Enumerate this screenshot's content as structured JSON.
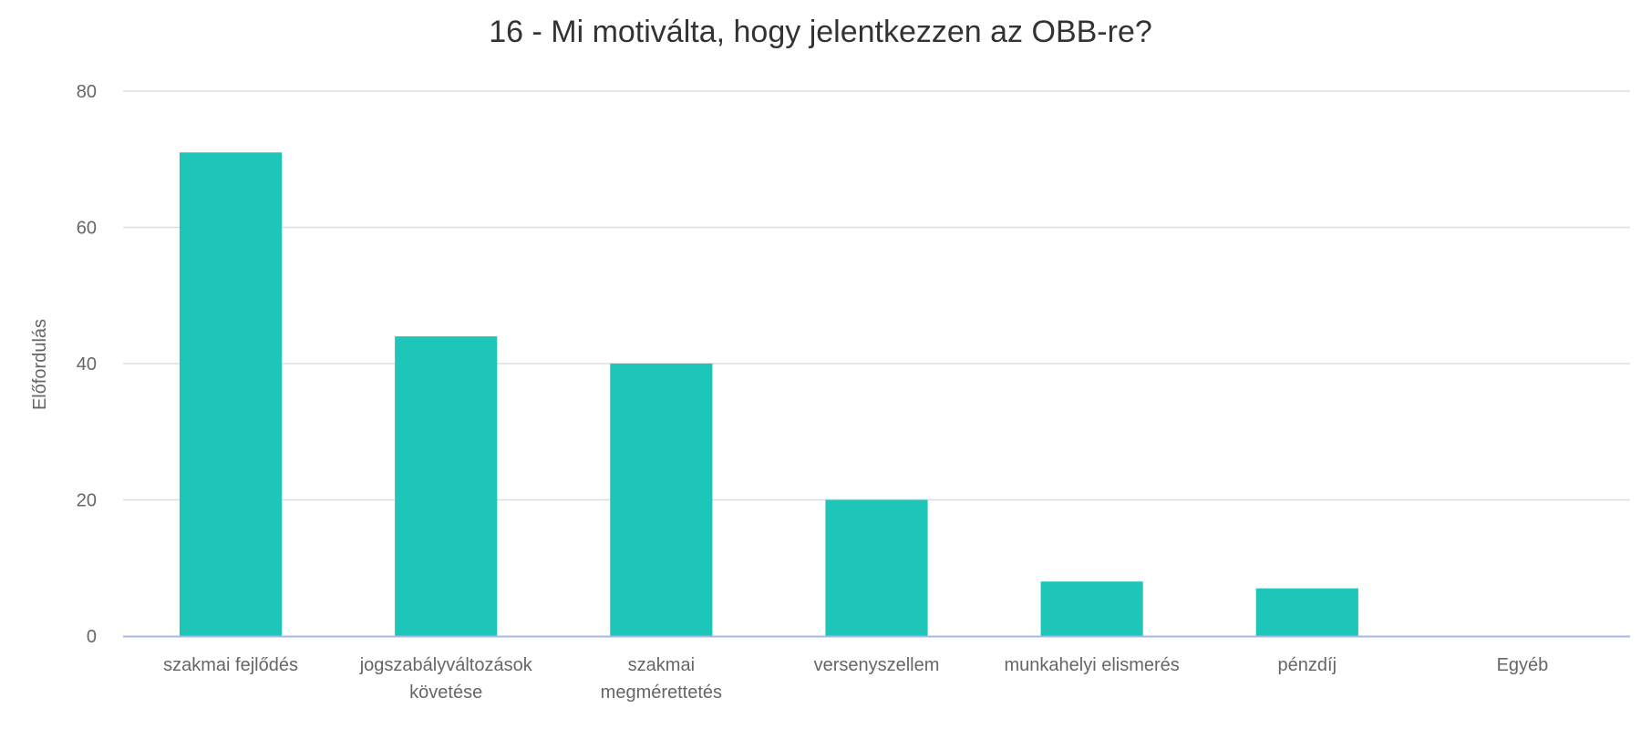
{
  "chart_data": {
    "type": "bar",
    "title": "16 - Mi motiválta, hogy jelentkezzen az OBB-re?",
    "xlabel": "",
    "ylabel": "Előfordulás",
    "ylim": [
      0,
      80
    ],
    "yticks": [
      0,
      20,
      40,
      60,
      80
    ],
    "categories": [
      [
        "szakmai fejlődés"
      ],
      [
        "jogszabályváltozások",
        "követése"
      ],
      [
        "szakmai",
        "megmérettetés"
      ],
      [
        "versenyszellem"
      ],
      [
        "munkahelyi elismerés"
      ],
      [
        "pénzdíj"
      ],
      [
        "Egyéb"
      ]
    ],
    "values": [
      71,
      44,
      40,
      20,
      8,
      7,
      0
    ],
    "grid": true,
    "legend": "none",
    "bar_color": "#1dc6b9",
    "grid_color": "#d8dde6",
    "axis_color": "#a9b8e0"
  }
}
